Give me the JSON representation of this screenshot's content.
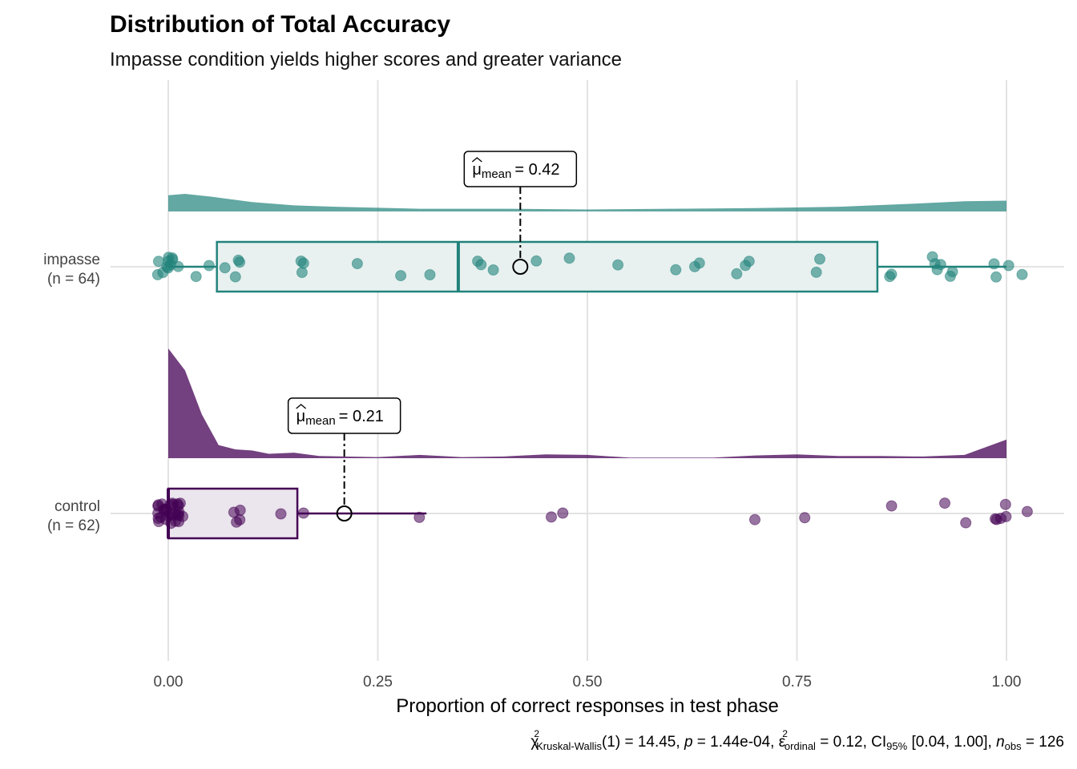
{
  "chart_data": {
    "type": "raincloud",
    "title": "Distribution of Total Accuracy",
    "subtitle": "Impasse condition yields higher scores and greater variance",
    "xlabel": "Proportion of correct responses in test phase",
    "xlim": [
      0,
      1
    ],
    "x_ticks": [
      0,
      0.25,
      0.5,
      0.75,
      1
    ],
    "x_tick_labels": [
      "0.00",
      "0.25",
      "0.50",
      "0.75",
      "1.00"
    ],
    "grid": true,
    "groups": [
      {
        "key": "impasse",
        "label_line1": "impasse",
        "label_line2": "(n = 64)",
        "color": "#21837b",
        "box": {
          "min": 0,
          "q1": 0.058,
          "median": 0.346,
          "q3": 0.846,
          "max": 1.0
        },
        "mean": 0.42,
        "mean_label_prefix": "μ",
        "mean_label_sub": "mean",
        "mean_label_value": "= 0.42",
        "density": [
          [
            0,
            0.12
          ],
          [
            0.02,
            0.13
          ],
          [
            0.05,
            0.11
          ],
          [
            0.1,
            0.07
          ],
          [
            0.15,
            0.045
          ],
          [
            0.2,
            0.035
          ],
          [
            0.3,
            0.02
          ],
          [
            0.4,
            0.02
          ],
          [
            0.5,
            0.015
          ],
          [
            0.6,
            0.02
          ],
          [
            0.7,
            0.025
          ],
          [
            0.8,
            0.035
          ],
          [
            0.9,
            0.06
          ],
          [
            0.95,
            0.075
          ],
          [
            1,
            0.08
          ]
        ],
        "points": [
          0,
          0,
          0,
          0,
          0,
          0,
          0,
          0,
          0,
          0.01,
          0.01,
          0.02,
          0.06,
          0.07,
          0.07,
          0.08,
          0.09,
          0.16,
          0.16,
          0.17,
          0.23,
          0.29,
          0.32,
          0.37,
          0.37,
          0.38,
          0.45,
          0.48,
          0.55,
          0.6,
          0.62,
          0.63,
          0.68,
          0.69,
          0.7,
          0.77,
          0.78,
          0.85,
          0.85,
          0.91,
          0.91,
          0.92,
          0.93,
          0.93,
          0.94,
          1.0,
          1.0,
          1.0,
          1.02
        ]
      },
      {
        "key": "control",
        "label_line1": "control",
        "label_line2": "(n = 62)",
        "color": "#440154",
        "box": {
          "min": 0,
          "q1": 0,
          "median": 0,
          "q3": 0.154,
          "max": 0.308
        },
        "mean": 0.21,
        "mean_label_prefix": "μ",
        "mean_label_sub": "mean",
        "mean_label_value": "= 0.21",
        "density": [
          [
            0,
            1.0
          ],
          [
            0.02,
            0.8
          ],
          [
            0.04,
            0.4
          ],
          [
            0.06,
            0.12
          ],
          [
            0.08,
            0.08
          ],
          [
            0.1,
            0.07
          ],
          [
            0.12,
            0.04
          ],
          [
            0.15,
            0.05
          ],
          [
            0.18,
            0.02
          ],
          [
            0.25,
            0.01
          ],
          [
            0.3,
            0.03
          ],
          [
            0.35,
            0.01
          ],
          [
            0.4,
            0.015
          ],
          [
            0.45,
            0.035
          ],
          [
            0.5,
            0.03
          ],
          [
            0.55,
            0.005
          ],
          [
            0.65,
            0.005
          ],
          [
            0.7,
            0.025
          ],
          [
            0.75,
            0.035
          ],
          [
            0.8,
            0.02
          ],
          [
            0.85,
            0.02
          ],
          [
            0.9,
            0.015
          ],
          [
            0.95,
            0.03
          ],
          [
            1,
            0.17
          ]
        ],
        "points": [
          0,
          0,
          0,
          0,
          0,
          0,
          0,
          0,
          0,
          0,
          0,
          0,
          0,
          0,
          0,
          0,
          0,
          0,
          0,
          0,
          0,
          0,
          0,
          0,
          0,
          0.01,
          0.01,
          0.02,
          0.02,
          0.07,
          0.08,
          0.08,
          0.09,
          0.14,
          0.15,
          0.29,
          0.45,
          0.48,
          0.7,
          0.77,
          0.85,
          0.92,
          0.94,
          0.99,
          0.99,
          1.0,
          1.0,
          1.01,
          1.02
        ]
      }
    ],
    "caption": {
      "chi_sym": "χ",
      "chi_sup": "2",
      "test_sub": "Kruskal-Wallis",
      "part1": "(1) = 14.45, ",
      "p_sym": "p",
      "part2": " = 1.44e-04, ",
      "eps_sym": "ε",
      "eps_sup": "2",
      "eps_sub": "ordinal",
      "part3": " = 0.12, CI",
      "ci_sub": "95%",
      "part4": " [0.04, 1.00], ",
      "n_sym": "n",
      "n_sub": "obs",
      "part5": " = 126"
    }
  }
}
